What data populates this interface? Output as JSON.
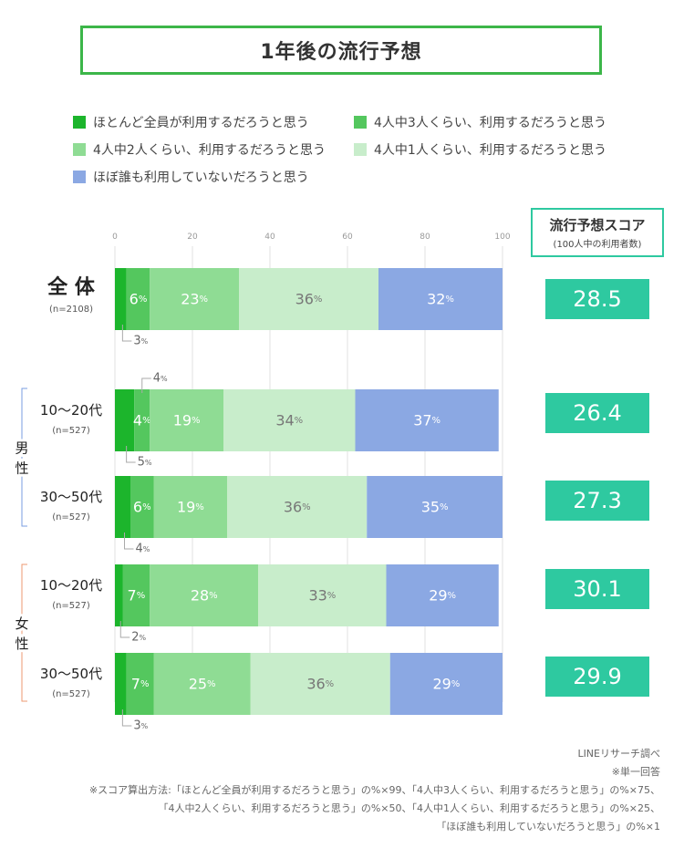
{
  "chart_data": {
    "type": "bar",
    "orientation": "horizontal-stacked",
    "title": "1年後の流行予想",
    "xlim": [
      0,
      100
    ],
    "x_ticks": [
      "0",
      "20",
      "40",
      "60",
      "80",
      "100"
    ],
    "legend": [
      {
        "label": "ほとんど全員が利用するだろうと思う",
        "color": "#1cb52c"
      },
      {
        "label": "4人中3人くらい、利用するだろうと思う",
        "color": "#54c75e"
      },
      {
        "label": "4人中2人くらい、利用するだろうと思う",
        "color": "#8fdc94"
      },
      {
        "label": "4人中1人くらい、利用するだろうと思う",
        "color": "#c8edcb"
      },
      {
        "label": "ほぼ誰も利用していないだろうと思う",
        "color": "#8ba8e3"
      }
    ],
    "groups": [
      {
        "label": "男性",
        "color": "#7a9de0"
      },
      {
        "label": "女性",
        "color": "#ee9a72"
      }
    ],
    "rows": [
      {
        "label": "全 体",
        "n": "(n=2108)",
        "values": [
          3,
          6,
          23,
          36,
          32
        ],
        "score": "28.5",
        "big": true
      },
      {
        "label": "10〜20代",
        "n": "(n=527)",
        "values": [
          5,
          4,
          19,
          34,
          37
        ],
        "score": "26.4",
        "group": 0
      },
      {
        "label": "30〜50代",
        "n": "(n=527)",
        "values": [
          4,
          6,
          19,
          36,
          35
        ],
        "score": "27.3",
        "group": 0
      },
      {
        "label": "10〜20代",
        "n": "(n=527)",
        "values": [
          2,
          7,
          28,
          33,
          29
        ],
        "score": "30.1",
        "group": 1
      },
      {
        "label": "30〜50代",
        "n": "(n=527)",
        "values": [
          3,
          7,
          25,
          36,
          29
        ],
        "score": "29.9",
        "group": 1
      }
    ],
    "percent_suffix": "%",
    "score_header": "流行予想スコア",
    "score_subheader": "(100人中の利用者数)"
  },
  "notes": [
    "LINEリサーチ調べ",
    "※単一回答",
    "※スコア算出方法:「ほとんど全員が利用するだろうと思う」の%×99、「4人中3人くらい、利用するだろうと思う」の%×75、",
    "「4人中2人くらい、利用するだろうと思う」の%×50、「4人中1人くらい、利用するだろうと思う」の%×25、",
    "「ほぼ誰も利用していないだろうと思う」の%×1"
  ]
}
